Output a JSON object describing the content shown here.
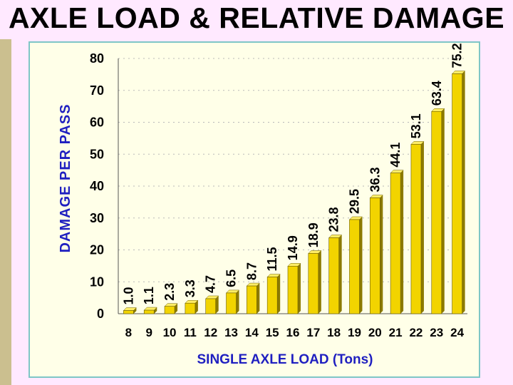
{
  "slide": {
    "title": "AXLE LOAD & RELATIVE DAMAGE"
  },
  "colors": {
    "bar_face": "#f2d400",
    "bar_side": "#8c7a00",
    "bar_top": "#ffee66",
    "axis_title": "#1f1fc0",
    "panel_bg": "#ffffe8",
    "panel_border": "#7fc6c6",
    "slide_bg": "#ffe9ff",
    "side_strip": "#cbbf8f"
  },
  "chart_data": {
    "type": "bar",
    "title": "",
    "xlabel": "SINGLE AXLE LOAD (Tons)",
    "ylabel": "DAMAGE PER PASS",
    "categories": [
      "8",
      "9",
      "10",
      "11",
      "12",
      "13",
      "14",
      "15",
      "16",
      "17",
      "18",
      "19",
      "20",
      "21",
      "22",
      "23",
      "24"
    ],
    "values": [
      1.0,
      1.1,
      2.3,
      3.3,
      4.7,
      6.5,
      8.7,
      11.5,
      14.9,
      18.9,
      23.8,
      29.5,
      36.3,
      44.1,
      53.1,
      63.4,
      75.2
    ],
    "value_labels": [
      "1.0",
      "1.1",
      "2.3",
      "3.3",
      "4.7",
      "6.5",
      "8.7",
      "11.5",
      "14.9",
      "18.9",
      "23.8",
      "29.5",
      "36.3",
      "44.1",
      "53.1",
      "63.4",
      "75.2"
    ],
    "y_ticks": [
      "0",
      "10",
      "20",
      "30",
      "40",
      "50",
      "60",
      "70",
      "80"
    ],
    "ylim": [
      0,
      80
    ],
    "grid": "horizontal-dotted",
    "legend": "none",
    "bar_style": "3d"
  }
}
